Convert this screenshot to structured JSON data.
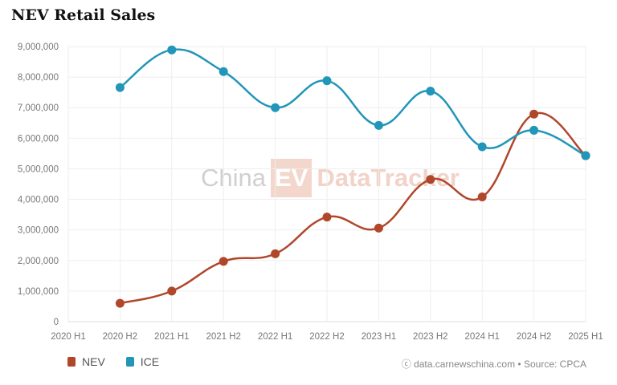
{
  "title": "NEV Retail Sales",
  "watermark": {
    "china": "China",
    "ev": "EV",
    "tracker": "DataTracker"
  },
  "credit": "data.carnewschina.com • Source: CPCA",
  "colors": {
    "NEV": "#b0472b",
    "ICE": "#2196b8"
  },
  "chart_data": {
    "type": "line",
    "title": "NEV Retail Sales",
    "categories": [
      "2020 H1",
      "2020 H2",
      "2021 H1",
      "2021 H2",
      "2022 H1",
      "2022 H2",
      "2023 H1",
      "2023 H2",
      "2024 H1",
      "2024 H2",
      "2025 H1"
    ],
    "ylim": [
      0,
      9000000
    ],
    "yticks": [
      "0",
      "1,000,000",
      "2,000,000",
      "3,000,000",
      "4,000,000",
      "5,000,000",
      "6,000,000",
      "7,000,000",
      "8,000,000",
      "9,000,000"
    ],
    "grid": true,
    "legend": "bottom-left",
    "series": [
      {
        "name": "NEV",
        "values": [
          null,
          600000,
          1000000,
          1970000,
          2220000,
          3420000,
          3060000,
          4650000,
          4080000,
          6790000,
          5430000
        ]
      },
      {
        "name": "ICE",
        "values": [
          null,
          7660000,
          8890000,
          8180000,
          7000000,
          7880000,
          6420000,
          7540000,
          5720000,
          6260000,
          5430000
        ]
      }
    ]
  }
}
